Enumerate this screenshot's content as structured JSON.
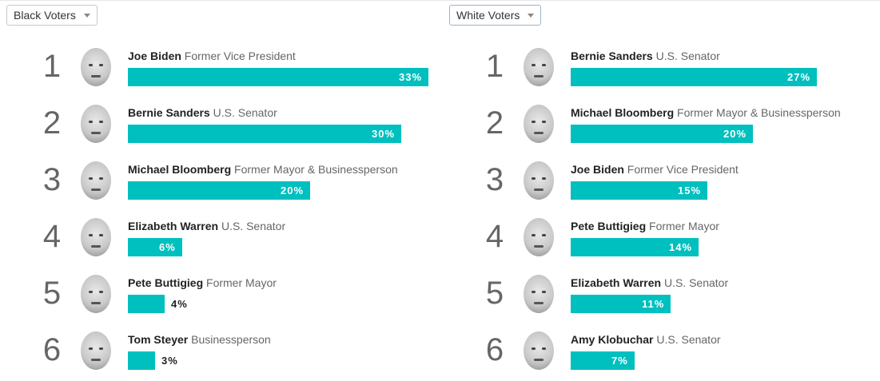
{
  "panels": [
    {
      "dropdown_label": "Black Voters",
      "candidates": [
        {
          "rank": "1",
          "name": "Joe Biden",
          "title": "Former Vice President",
          "pct": 33,
          "pct_label": "33%",
          "face": "joe-biden-photo"
        },
        {
          "rank": "2",
          "name": "Bernie Sanders",
          "title": "U.S. Senator",
          "pct": 30,
          "pct_label": "30%",
          "face": "bernie-sanders-photo"
        },
        {
          "rank": "3",
          "name": "Michael Bloomberg",
          "title": "Former Mayor & Businessperson",
          "pct": 20,
          "pct_label": "20%",
          "face": "michael-bloomberg-photo"
        },
        {
          "rank": "4",
          "name": "Elizabeth Warren",
          "title": "U.S. Senator",
          "pct": 6,
          "pct_label": "6%",
          "face": "elizabeth-warren-photo"
        },
        {
          "rank": "5",
          "name": "Pete Buttigieg",
          "title": "Former Mayor",
          "pct": 4,
          "pct_label": "4%",
          "face": "pete-buttigieg-photo"
        },
        {
          "rank": "6",
          "name": "Tom Steyer",
          "title": "Businessperson",
          "pct": 3,
          "pct_label": "3%",
          "face": "tom-steyer-photo"
        }
      ]
    },
    {
      "dropdown_label": "White Voters",
      "candidates": [
        {
          "rank": "1",
          "name": "Bernie Sanders",
          "title": "U.S. Senator",
          "pct": 27,
          "pct_label": "27%",
          "face": "bernie-sanders-photo"
        },
        {
          "rank": "2",
          "name": "Michael Bloomberg",
          "title": "Former Mayor & Businessperson",
          "pct": 20,
          "pct_label": "20%",
          "face": "michael-bloomberg-photo"
        },
        {
          "rank": "3",
          "name": "Joe Biden",
          "title": "Former Vice President",
          "pct": 15,
          "pct_label": "15%",
          "face": "joe-biden-photo"
        },
        {
          "rank": "4",
          "name": "Pete Buttigieg",
          "title": "Former Mayor",
          "pct": 14,
          "pct_label": "14%",
          "face": "pete-buttigieg-photo"
        },
        {
          "rank": "5",
          "name": "Elizabeth Warren",
          "title": "U.S. Senator",
          "pct": 11,
          "pct_label": "11%",
          "face": "elizabeth-warren-photo"
        },
        {
          "rank": "6",
          "name": "Amy Klobuchar",
          "title": "U.S. Senator",
          "pct": 7,
          "pct_label": "7%",
          "face": "amy-klobuchar-photo"
        }
      ]
    }
  ],
  "chart_data": [
    {
      "type": "bar",
      "orientation": "horizontal",
      "categories": [
        "Joe Biden",
        "Bernie Sanders",
        "Michael Bloomberg",
        "Elizabeth Warren",
        "Pete Buttigieg",
        "Tom Steyer"
      ],
      "values": [
        33,
        30,
        20,
        6,
        4,
        3
      ]
    },
    {
      "type": "bar",
      "orientation": "horizontal",
      "categories": [
        "Bernie Sanders",
        "Michael Bloomberg",
        "Joe Biden",
        "Pete Buttigieg",
        "Elizabeth Warren",
        "Amy Klobuchar"
      ],
      "values": [
        27,
        20,
        15,
        14,
        11,
        7
      ]
    }
  ],
  "colors": {
    "bar": "#00bfbf",
    "rank": "#666666",
    "name": "#222222",
    "title": "#666666"
  },
  "icons": {
    "dropdown": "caret-down-icon"
  }
}
